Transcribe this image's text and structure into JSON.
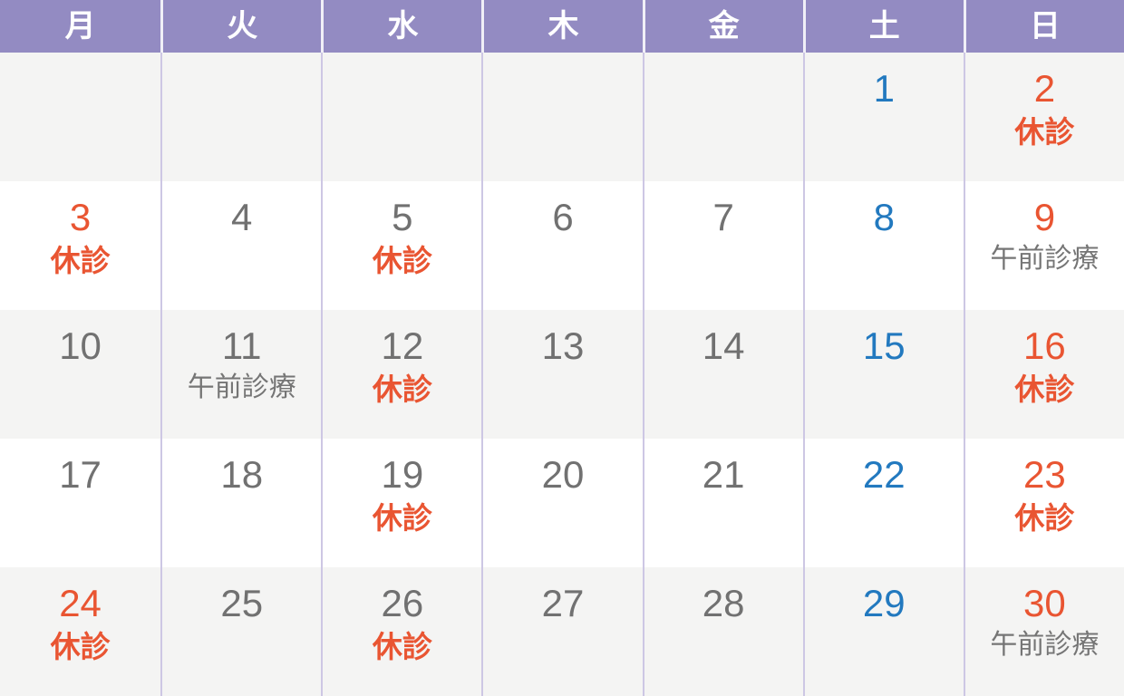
{
  "calendar": {
    "weekday_headers": [
      {
        "label": "月"
      },
      {
        "label": "火"
      },
      {
        "label": "水"
      },
      {
        "label": "木"
      },
      {
        "label": "金"
      },
      {
        "label": "土"
      },
      {
        "label": "日"
      }
    ],
    "colors": {
      "header_background": "#938bc2",
      "header_text": "#ffffff",
      "holiday_red": "#e95532",
      "saturday_blue": "#2279bf",
      "weekday_gray": "#717171",
      "note_gray": "#757575",
      "shaded_row_background": "#f4f4f3",
      "plain_row_background": "#ffffff",
      "grid_line": "#cdc7e4"
    },
    "weeks": [
      [
        {
          "day": ""
        },
        {
          "day": ""
        },
        {
          "day": ""
        },
        {
          "day": ""
        },
        {
          "day": ""
        },
        {
          "day": "1",
          "day_color": "blue"
        },
        {
          "day": "2",
          "day_color": "red",
          "note": "休診",
          "note_color": "red"
        }
      ],
      [
        {
          "day": "3",
          "day_color": "red",
          "note": "休診",
          "note_color": "red"
        },
        {
          "day": "4",
          "day_color": "gray"
        },
        {
          "day": "5",
          "day_color": "gray",
          "note": "休診",
          "note_color": "red"
        },
        {
          "day": "6",
          "day_color": "gray"
        },
        {
          "day": "7",
          "day_color": "gray"
        },
        {
          "day": "8",
          "day_color": "blue"
        },
        {
          "day": "9",
          "day_color": "red",
          "note": "午前診療",
          "note_color": "gray"
        }
      ],
      [
        {
          "day": "10",
          "day_color": "gray"
        },
        {
          "day": "11",
          "day_color": "gray",
          "note": "午前診療",
          "note_color": "gray"
        },
        {
          "day": "12",
          "day_color": "gray",
          "note": "休診",
          "note_color": "red"
        },
        {
          "day": "13",
          "day_color": "gray"
        },
        {
          "day": "14",
          "day_color": "gray"
        },
        {
          "day": "15",
          "day_color": "blue"
        },
        {
          "day": "16",
          "day_color": "red",
          "note": "休診",
          "note_color": "red"
        }
      ],
      [
        {
          "day": "17",
          "day_color": "gray"
        },
        {
          "day": "18",
          "day_color": "gray"
        },
        {
          "day": "19",
          "day_color": "gray",
          "note": "休診",
          "note_color": "red"
        },
        {
          "day": "20",
          "day_color": "gray"
        },
        {
          "day": "21",
          "day_color": "gray"
        },
        {
          "day": "22",
          "day_color": "blue"
        },
        {
          "day": "23",
          "day_color": "red",
          "note": "休診",
          "note_color": "red"
        }
      ],
      [
        {
          "day": "24",
          "day_color": "red",
          "note": "休診",
          "note_color": "red"
        },
        {
          "day": "25",
          "day_color": "gray"
        },
        {
          "day": "26",
          "day_color": "gray",
          "note": "休診",
          "note_color": "red"
        },
        {
          "day": "27",
          "day_color": "gray"
        },
        {
          "day": "28",
          "day_color": "gray"
        },
        {
          "day": "29",
          "day_color": "blue"
        },
        {
          "day": "30",
          "day_color": "red",
          "note": "午前診療",
          "note_color": "gray"
        }
      ]
    ]
  }
}
